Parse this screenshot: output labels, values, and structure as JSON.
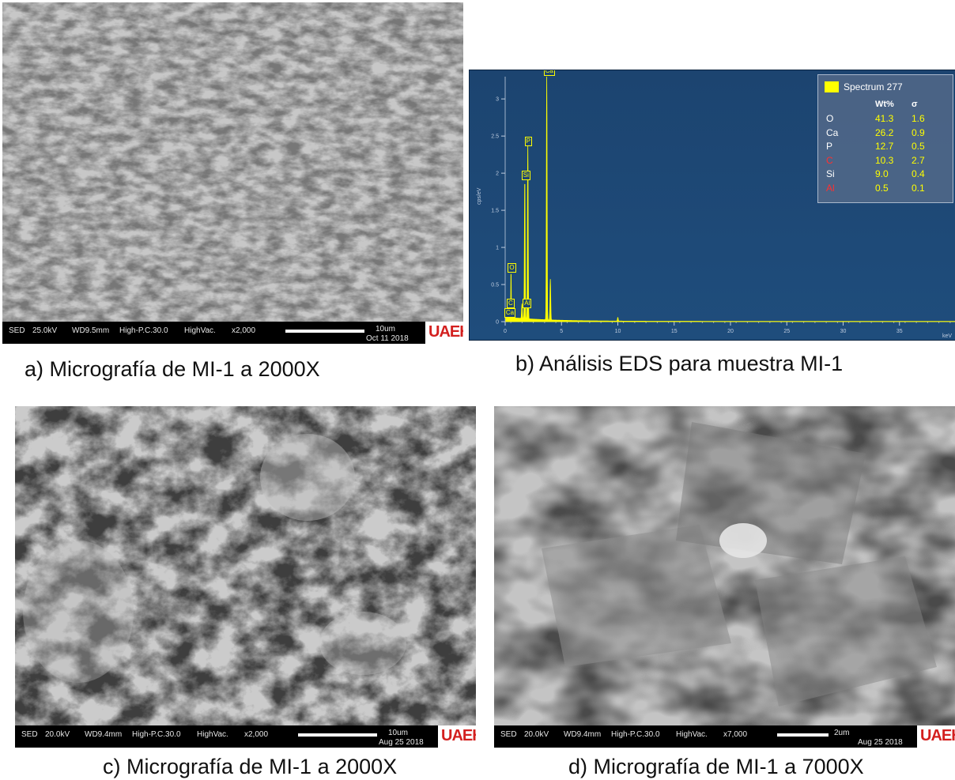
{
  "panels": {
    "a": {
      "caption": "a) Micrografía de MI-1 a 2000X",
      "infobar": {
        "mode": "SED",
        "kv": "25.0kV",
        "wd": "WD9.5mm",
        "pc": "High-P.C.30.0",
        "vac": "HighVac.",
        "mag": "x2,000",
        "scale": "10um",
        "date": "Oct 11 2018"
      },
      "logo": "UAEH"
    },
    "b": {
      "caption": "b) Análisis EDS para muestra MI-1",
      "legend": {
        "title": "Spectrum 277",
        "col_wt": "Wt%",
        "col_sigma": "σ",
        "rows": [
          {
            "el": "O",
            "wt": "41.3",
            "sigma": "1.6",
            "color": "#ffffff"
          },
          {
            "el": "Ca",
            "wt": "26.2",
            "sigma": "0.9",
            "color": "#ffffff"
          },
          {
            "el": "P",
            "wt": "12.7",
            "sigma": "0.5",
            "color": "#ffffff"
          },
          {
            "el": "C",
            "wt": "10.3",
            "sigma": "2.7",
            "color": "#ff3030"
          },
          {
            "el": "Si",
            "wt": "9.0",
            "sigma": "0.4",
            "color": "#ffffff"
          },
          {
            "el": "Al",
            "wt": "0.5",
            "sigma": "0.1",
            "color": "#ff3030"
          }
        ]
      },
      "ylabel": "cps/eV",
      "xunit": "keV"
    },
    "c": {
      "caption": "c) Micrografía de MI-1 a 2000X",
      "infobar": {
        "mode": "SED",
        "kv": "20.0kV",
        "wd": "WD9.4mm",
        "pc": "High-P.C.30.0",
        "vac": "HighVac.",
        "mag": "x2,000",
        "scale": "10um",
        "date": "Aug 25 2018"
      },
      "logo": "UAEH"
    },
    "d": {
      "caption": "d) Micrografía de MI-1 a 7000X",
      "infobar": {
        "mode": "SED",
        "kv": "20.0kV",
        "wd": "WD9.4mm",
        "pc": "High-P.C.30.0",
        "vac": "HighVac.",
        "mag": "x7,000",
        "scale": "2um",
        "date": "Aug 25 2018"
      },
      "logo": "UAEH"
    }
  },
  "chart_data": {
    "type": "line",
    "title": "",
    "xlabel": "keV",
    "ylabel": "cps/eV",
    "xlim": [
      0,
      40
    ],
    "ylim": [
      0,
      3.3
    ],
    "x_ticks": [
      "0",
      "5",
      "10",
      "15",
      "20",
      "25",
      "30",
      "35"
    ],
    "y_ticks": [
      "0",
      "0.5",
      "1",
      "1.5",
      "2",
      "2.5",
      "3"
    ],
    "series_color": "#ffff00",
    "peaks": [
      {
        "label": "C",
        "x": 0.28,
        "y": 0.25
      },
      {
        "label": "Ca",
        "x": 0.34,
        "y": 0.13
      },
      {
        "label": "O",
        "x": 0.52,
        "y": 0.65
      },
      {
        "label": "Al",
        "x": 1.49,
        "y": 0.2
      },
      {
        "label": "Si",
        "x": 1.74,
        "y": 1.9
      },
      {
        "label": "P",
        "x": 2.01,
        "y": 2.35
      },
      {
        "label": "Ca",
        "x": 3.69,
        "y": 3.3
      },
      {
        "label": "",
        "x": 4.01,
        "y": 0.55
      },
      {
        "label": "",
        "x": 10.0,
        "y": 0.05
      }
    ]
  }
}
